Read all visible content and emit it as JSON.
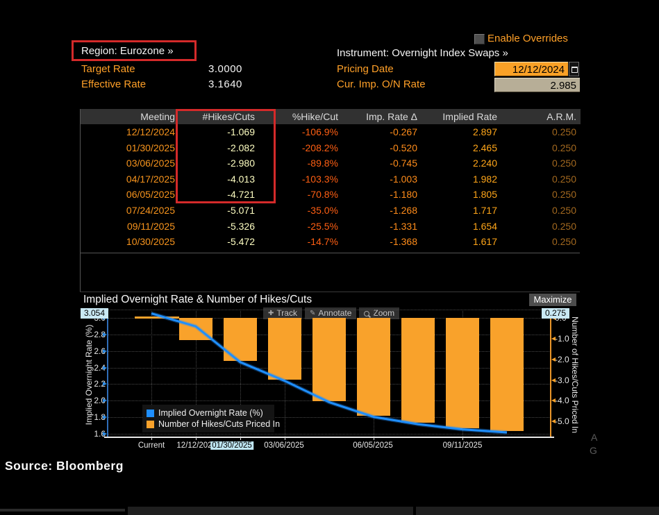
{
  "colors": {
    "accent_orange": "#ffa028",
    "bar_orange": "#f9a22b",
    "line_blue": "#1f8fff",
    "badge_cyan": "#c9e9f4",
    "highlight_red": "#d42a2a"
  },
  "header": {
    "enable_overrides": "Enable Overrides",
    "region_label": "Region: Eurozone »",
    "instrument_label": "Instrument: Overnight Index Swaps »",
    "target_rate_label": "Target Rate",
    "target_rate_value": "3.0000",
    "effective_rate_label": "Effective Rate",
    "effective_rate_value": "3.1640",
    "pricing_date_label": "Pricing Date",
    "pricing_date_value": "12/12/2024",
    "cur_imp_label": "Cur. Imp. O/N Rate",
    "cur_imp_value": "2.985"
  },
  "table": {
    "columns": [
      "Meeting",
      "#Hikes/Cuts",
      "%Hike/Cut",
      "Imp. Rate Δ",
      "Implied Rate",
      "A.R.M."
    ],
    "rows": [
      [
        "12/12/2024",
        "-1.069",
        "-106.9%",
        "-0.267",
        "2.897",
        "0.250"
      ],
      [
        "01/30/2025",
        "-2.082",
        "-208.2%",
        "-0.520",
        "2.465",
        "0.250"
      ],
      [
        "03/06/2025",
        "-2.980",
        "-89.8%",
        "-0.745",
        "2.240",
        "0.250"
      ],
      [
        "04/17/2025",
        "-4.013",
        "-103.3%",
        "-1.003",
        "1.982",
        "0.250"
      ],
      [
        "06/05/2025",
        "-4.721",
        "-70.8%",
        "-1.180",
        "1.805",
        "0.250"
      ],
      [
        "07/24/2025",
        "-5.071",
        "-35.0%",
        "-1.268",
        "1.717",
        "0.250"
      ],
      [
        "09/11/2025",
        "-5.326",
        "-25.5%",
        "-1.331",
        "1.654",
        "0.250"
      ],
      [
        "10/30/2025",
        "-5.472",
        "-14.7%",
        "-1.368",
        "1.617",
        "0.250"
      ]
    ]
  },
  "chart": {
    "title": "Implied Overnight Rate & Number of Hikes/Cuts",
    "maximize_label": "Maximize",
    "toolbar": [
      "Track",
      "Annotate",
      "Zoom"
    ],
    "left_badge": "3.054",
    "right_badge": "0.275"
  },
  "chart_data": {
    "type": "combo line+bar",
    "categories": [
      "Current",
      "12/12/2024",
      "01/30/2025",
      "03/06/2025",
      "04/17/2025",
      "06/05/2025",
      "07/24/2025",
      "09/11/2025",
      "10/30/2025"
    ],
    "series": [
      {
        "name": "Implied Overnight Rate (%)",
        "type": "line",
        "axis": "left",
        "color": "#1f8fff",
        "values": [
          3.054,
          2.897,
          2.465,
          2.24,
          1.982,
          1.805,
          1.717,
          1.654,
          1.617
        ]
      },
      {
        "name": "Number of Hikes/Cuts Priced In",
        "type": "bar",
        "axis": "right",
        "color": "#f9a22b",
        "values": [
          null,
          -1.069,
          -2.082,
          -2.98,
          -4.013,
          -4.721,
          -5.071,
          -5.326,
          -5.472
        ]
      }
    ],
    "left_axis": {
      "label": "Implied Overnight Rate (%)",
      "ticks": [
        3.0,
        2.8,
        2.6,
        2.4,
        2.2,
        2.0,
        1.8,
        1.6
      ],
      "current": 3.054
    },
    "right_axis": {
      "label": "Number of Hikes/Cuts Priced In",
      "ticks": [
        0.0,
        -1.0,
        -2.0,
        -3.0,
        -4.0,
        -5.0
      ],
      "current": 0.275
    },
    "x_axis": {
      "labels": [
        {
          "text": "Current",
          "highlighted": false
        },
        {
          "text": "12/12/202",
          "highlighted": false
        },
        {
          "text": "01/30/2025",
          "highlighted": true
        },
        {
          "text": "03/06/2025",
          "highlighted": false
        },
        {
          "text": "06/05/2025",
          "highlighted": false
        },
        {
          "text": "09/11/2025",
          "highlighted": false
        }
      ]
    },
    "grid": "dotted",
    "legend_position": "inside bottom-left"
  },
  "watermark": {
    "letters": [
      "A",
      "G"
    ]
  },
  "footer": {
    "source": "Source: Bloomberg"
  }
}
